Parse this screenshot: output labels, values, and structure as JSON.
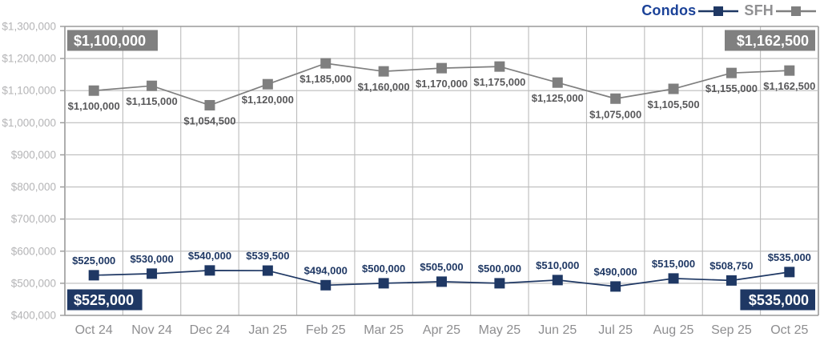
{
  "page": {
    "background": "#ffffff"
  },
  "legend": {
    "position": "top-right",
    "items": [
      {
        "label": "Condos",
        "label_color": "#1B4298",
        "line_color": "#1F3864"
      },
      {
        "label": "SFH",
        "label_color": "#8F8F91",
        "line_color": "#7F7F7F"
      }
    ]
  },
  "axis": {
    "y_label_color": "#B4B4B6",
    "x_label_color": "#8E8E90",
    "grid_color": "#BCBCBC",
    "border_color": "#9A9A9A"
  },
  "chart_data": {
    "type": "line",
    "title": "",
    "xlabel": "",
    "ylabel": "",
    "categories": [
      "Oct 24",
      "Nov 24",
      "Dec 24",
      "Jan 25",
      "Feb 25",
      "Mar 25",
      "Apr 25",
      "May 25",
      "Jun 25",
      "Jul 25",
      "Aug 25",
      "Sep 25",
      "Oct 25"
    ],
    "series": [
      {
        "name": "SFH",
        "color": "#7F7F7F",
        "label_color": "#58585A",
        "label_position": "below",
        "values": [
          1100000,
          1115000,
          1054500,
          1120000,
          1185000,
          1160000,
          1170000,
          1175000,
          1125000,
          1075000,
          1105500,
          1155000,
          1162500
        ],
        "labels": [
          "$1,100,000",
          "$1,115,000",
          "$1,054,500",
          "$1,120,000",
          "$1,185,000",
          "$1,160,000",
          "$1,170,000",
          "$1,175,000",
          "$1,125,000",
          "$1,075,000",
          "$1,105,500",
          "$1,155,000",
          "$1,162,500"
        ]
      },
      {
        "name": "Condos",
        "color": "#1F3864",
        "label_color": "#1F3864",
        "label_position": "above",
        "values": [
          525000,
          530000,
          540000,
          539500,
          494000,
          500000,
          505000,
          500000,
          510000,
          490000,
          515000,
          508750,
          535000
        ],
        "labels": [
          "$525,000",
          "$530,000",
          "$540,000",
          "$539,500",
          "$494,000",
          "$500,000",
          "$505,000",
          "$500,000",
          "$510,000",
          "$490,000",
          "$515,000",
          "$508,750",
          "$535,000"
        ]
      }
    ],
    "ylim": [
      400000,
      1300000
    ],
    "ytick_step": 100000,
    "ytick_labels": [
      "$400,000",
      "$500,000",
      "$600,000",
      "$700,000",
      "$800,000",
      "$900,000",
      "$1,000,000",
      "$1,100,000",
      "$1,200,000",
      "$1,300,000"
    ],
    "grid": true,
    "legend_position": "top-right",
    "callouts": [
      {
        "text": "$1,100,000",
        "series": "SFH",
        "anchor": "top-left",
        "bg": "#808080",
        "fg": "#FFFFFF"
      },
      {
        "text": "$1,162,500",
        "series": "SFH",
        "anchor": "top-right",
        "bg": "#808080",
        "fg": "#FFFFFF"
      },
      {
        "text": "$525,000",
        "series": "Condos",
        "anchor": "bottom-left",
        "bg": "#1F3864",
        "fg": "#FFFFFF"
      },
      {
        "text": "$535,000",
        "series": "Condos",
        "anchor": "bottom-right",
        "bg": "#1F3864",
        "fg": "#FFFFFF"
      }
    ]
  }
}
